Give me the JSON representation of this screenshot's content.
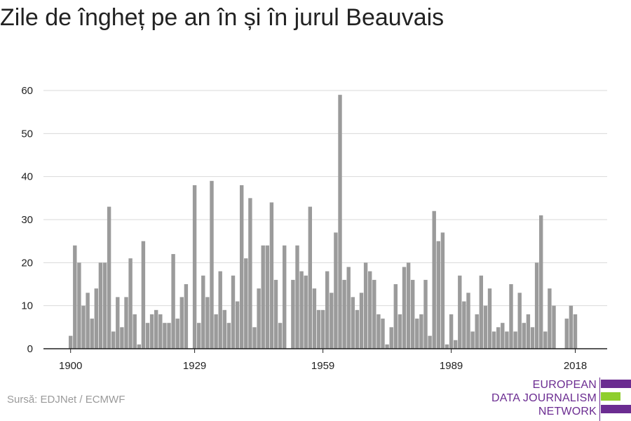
{
  "title": "Zile de îngheț pe an în și în jurul Beauvais",
  "source": "Sursă: EDJNet / ECMWF",
  "logo": {
    "line1": "EUROPEAN",
    "line2": "DATA JOURNALISM",
    "line3": "NETWORK",
    "colors": {
      "purple": "#6b2c91",
      "green": "#8fce2e"
    }
  },
  "colors": {
    "bar": "#9b9b9b",
    "grid": "#d9d9d9",
    "axis": "#222222"
  },
  "chart_data": {
    "type": "bar",
    "title": "Zile de îngheț pe an în și în jurul Beauvais",
    "xlabel": "",
    "ylabel": "",
    "ylim": [
      0,
      60
    ],
    "yticks": [
      0,
      10,
      20,
      30,
      40,
      50,
      60
    ],
    "xticks": [
      "1900",
      "1929",
      "1959",
      "1989",
      "2018"
    ],
    "grid": true,
    "x": [
      1900,
      1901,
      1902,
      1903,
      1904,
      1905,
      1906,
      1907,
      1908,
      1909,
      1910,
      1911,
      1912,
      1913,
      1914,
      1915,
      1916,
      1917,
      1918,
      1919,
      1920,
      1921,
      1922,
      1923,
      1924,
      1925,
      1926,
      1927,
      1928,
      1929,
      1930,
      1931,
      1932,
      1933,
      1934,
      1935,
      1936,
      1937,
      1938,
      1939,
      1940,
      1941,
      1942,
      1943,
      1944,
      1945,
      1946,
      1947,
      1948,
      1949,
      1950,
      1951,
      1952,
      1953,
      1954,
      1955,
      1956,
      1957,
      1958,
      1959,
      1960,
      1961,
      1962,
      1963,
      1964,
      1965,
      1966,
      1967,
      1968,
      1969,
      1970,
      1971,
      1972,
      1973,
      1974,
      1975,
      1976,
      1977,
      1978,
      1979,
      1980,
      1981,
      1982,
      1983,
      1984,
      1985,
      1986,
      1987,
      1988,
      1989,
      1990,
      1991,
      1992,
      1993,
      1994,
      1995,
      1996,
      1997,
      1998,
      1999,
      2000,
      2001,
      2002,
      2003,
      2004,
      2005,
      2006,
      2007,
      2008,
      2009,
      2010,
      2011,
      2012,
      2013,
      2014,
      2015,
      2016,
      2017,
      2018
    ],
    "values": [
      3,
      24,
      20,
      10,
      13,
      7,
      14,
      20,
      20,
      33,
      4,
      12,
      5,
      12,
      21,
      8,
      1,
      25,
      6,
      8,
      9,
      8,
      6,
      6,
      22,
      7,
      12,
      15,
      0,
      38,
      6,
      17,
      12,
      39,
      8,
      18,
      9,
      6,
      17,
      11,
      38,
      21,
      35,
      5,
      14,
      24,
      24,
      34,
      16,
      6,
      24,
      0,
      16,
      24,
      18,
      17,
      33,
      14,
      9,
      9,
      18,
      13,
      27,
      59,
      16,
      19,
      12,
      9,
      13,
      20,
      18,
      16,
      8,
      7,
      1,
      5,
      15,
      8,
      19,
      20,
      16,
      7,
      8,
      16,
      3,
      32,
      25,
      27,
      1,
      8,
      2,
      17,
      11,
      13,
      4,
      8,
      17,
      10,
      14,
      4,
      5,
      6,
      4,
      15,
      4,
      13,
      6,
      8,
      5,
      20,
      31,
      4,
      14,
      10,
      0,
      0,
      7,
      10,
      8
    ]
  }
}
